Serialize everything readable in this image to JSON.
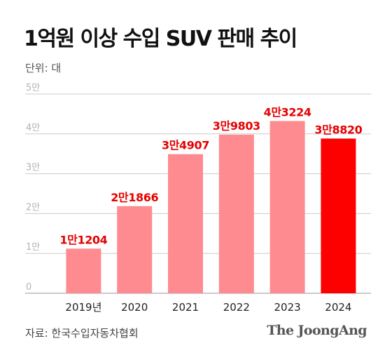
{
  "title": "1억원 이상 수입 SUV 판매 추이",
  "unit_label": "단위: 대",
  "source": "자료: 한국수입자동차협회",
  "brand": "The JoongAng",
  "colors": {
    "bar": "#fd8b90",
    "bar_highlight": "#fd0000",
    "value_label": "#e60000",
    "grid": "#cccccc",
    "tick_label": "#b3b3b3"
  },
  "chart_data": {
    "type": "bar",
    "title": "1억원 이상 수입 SUV 판매 추이",
    "xlabel": "",
    "ylabel": "",
    "categories": [
      "2019년",
      "2020",
      "2021",
      "2022",
      "2023",
      "2024"
    ],
    "values": [
      11204,
      21866,
      34907,
      39803,
      43224,
      38820
    ],
    "value_labels": [
      "1만1204",
      "2만1866",
      "3만4907",
      "3만9803",
      "4만3224",
      "3만8820"
    ],
    "highlight_index": 5,
    "ylim": [
      0,
      50000
    ],
    "yticks": [
      0,
      10000,
      20000,
      30000,
      40000,
      50000
    ],
    "ytick_labels": [
      "0",
      "1만",
      "2만",
      "3만",
      "4만",
      "5만"
    ],
    "grid": true,
    "legend": "none"
  }
}
